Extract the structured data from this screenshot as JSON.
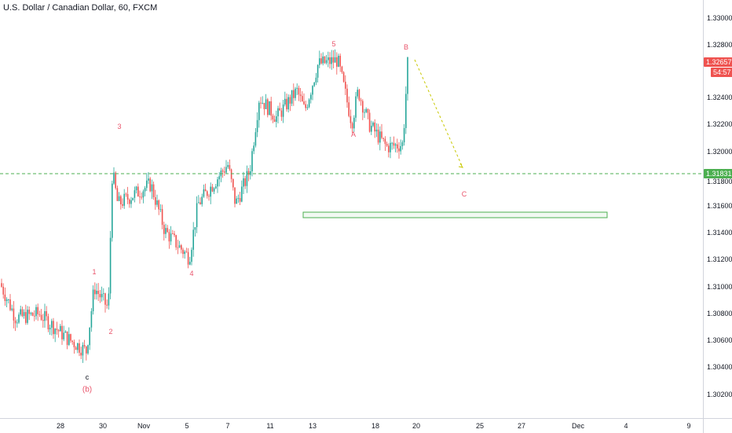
{
  "title": "U.S. Dollar / Canadian Dollar, 60, FXCM",
  "y_axis": [
    "1.33000",
    "1.32800",
    "1.32400",
    "1.32200",
    "1.32000",
    "1.31800",
    "1.31600",
    "1.31400",
    "1.31200",
    "1.31000",
    "1.30800",
    "1.30600",
    "1.30400",
    "1.30200"
  ],
  "x_axis": [
    "28",
    "30",
    "Nov",
    "5",
    "7",
    "11",
    "13",
    "18",
    "20",
    "25",
    "27",
    "Dec",
    "4",
    "9"
  ],
  "price_current": {
    "value": "1.32657",
    "countdown": "54:57",
    "color": "#ef5350"
  },
  "price_line": {
    "value": "1.31831",
    "color": "#4caf50"
  },
  "wave_labels": {
    "c_lower": "c",
    "b_paren": "(b)",
    "w1": "1",
    "w2": "2",
    "w3": "3",
    "w4": "4",
    "w5": "5",
    "A": "A",
    "B": "B",
    "C": "C"
  },
  "colors": {
    "up": "#26a69a",
    "down": "#ef5350",
    "projection": "#c8c800",
    "zone_border": "#4caf50"
  },
  "chart_data": {
    "type": "candlestick",
    "title": "U.S. Dollar / Canadian Dollar, 60, FXCM",
    "y_range": [
      1.3,
      1.331
    ],
    "x_categories": [
      "28",
      "30",
      "Nov",
      "5",
      "7",
      "11",
      "13",
      "18",
      "20",
      "25",
      "27",
      "Dec",
      "4",
      "9"
    ],
    "key_points": [
      {
        "label": "c",
        "price": 1.3043
      },
      {
        "label": "1",
        "price": 1.3102
      },
      {
        "label": "2",
        "price": 1.3083
      },
      {
        "label": "3",
        "price": 1.3209
      },
      {
        "label": "4",
        "price": 1.3116
      },
      {
        "label": "5",
        "price": 1.3268
      },
      {
        "label": "A",
        "price": 1.3201
      },
      {
        "label": "B",
        "price": 1.3268
      },
      {
        "label": "C",
        "price": 1.3186
      }
    ],
    "horizontal_line": 1.31831,
    "last_price": 1.32657,
    "target_zone": [
      1.3154,
      1.3159
    ]
  }
}
